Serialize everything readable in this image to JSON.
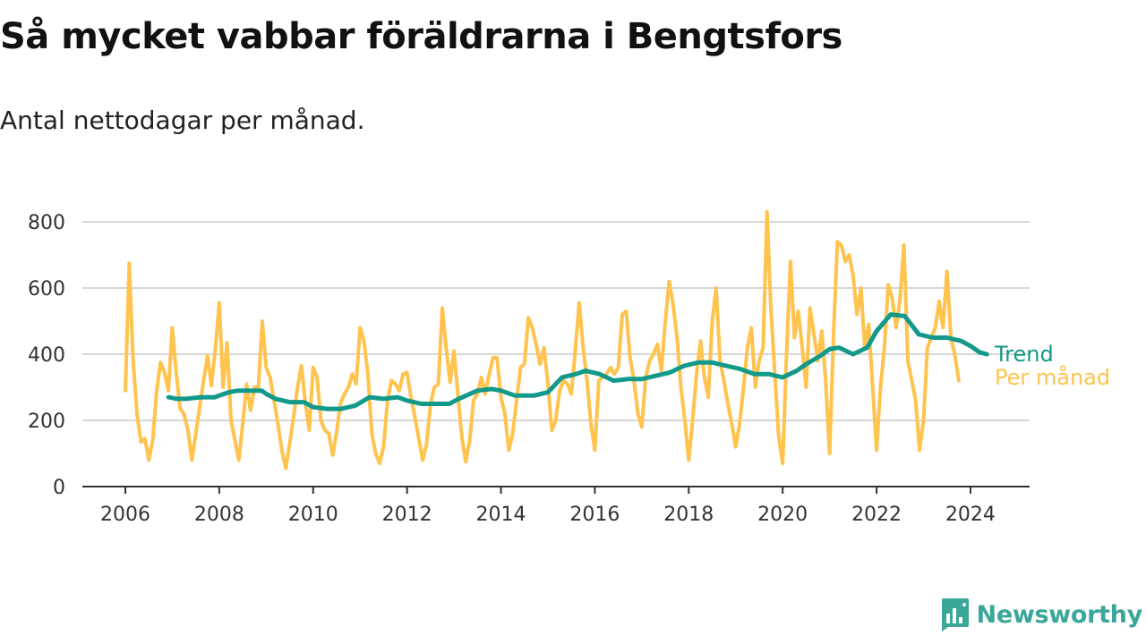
{
  "title": "Så mycket vabbar föräldrarna i Bengtsfors",
  "subtitle": "Antal nettodagar per månad.",
  "brand": "Newsworthy",
  "colors": {
    "monthly": "#ffc34e",
    "trend": "#12998a",
    "grid": "#d6d6d6",
    "axis": "#333333",
    "brand": "#3aa79a"
  },
  "chart_data": {
    "type": "line",
    "x_unit": "year (decimal)",
    "xlim": [
      2006,
      2024.5
    ],
    "ylim": [
      0,
      800
    ],
    "y_ticks": [
      0,
      200,
      400,
      600,
      800
    ],
    "x_ticks": [
      2006,
      2008,
      2010,
      2012,
      2014,
      2016,
      2018,
      2020,
      2022,
      2024
    ],
    "x_tick_labels": [
      "2006",
      "2008",
      "2010",
      "2012",
      "2014",
      "2016",
      "2018",
      "2020",
      "2022",
      "2024"
    ],
    "grid": "horizontal",
    "legend": "inline-right",
    "series": [
      {
        "name": "Per månad",
        "color": "#ffc34e",
        "x_start": 2006.0,
        "x_step": 0.08333,
        "values": [
          290,
          675,
          380,
          215,
          135,
          145,
          80,
          140,
          290,
          375,
          345,
          290,
          480,
          345,
          235,
          220,
          170,
          80,
          160,
          240,
          320,
          395,
          305,
          415,
          555,
          300,
          435,
          200,
          140,
          80,
          190,
          310,
          230,
          300,
          300,
          500,
          360,
          330,
          260,
          190,
          110,
          55,
          130,
          210,
          300,
          365,
          255,
          170,
          360,
          330,
          200,
          170,
          160,
          95,
          165,
          250,
          280,
          300,
          340,
          310,
          480,
          440,
          340,
          160,
          100,
          70,
          120,
          260,
          320,
          310,
          290,
          340,
          345,
          270,
          210,
          145,
          80,
          130,
          250,
          300,
          310,
          540,
          420,
          315,
          410,
          280,
          150,
          75,
          140,
          260,
          280,
          330,
          280,
          340,
          390,
          390,
          270,
          220,
          110,
          160,
          260,
          360,
          370,
          510,
          480,
          430,
          370,
          420,
          310,
          170,
          200,
          290,
          320,
          310,
          280,
          410,
          555,
          420,
          320,
          190,
          110,
          320,
          330,
          340,
          360,
          340,
          360,
          520,
          530,
          390,
          320,
          220,
          180,
          330,
          380,
          400,
          430,
          350,
          500,
          620,
          550,
          450,
          300,
          200,
          80,
          200,
          340,
          440,
          330,
          270,
          500,
          600,
          380,
          320,
          250,
          190,
          120,
          190,
          300,
          420,
          480,
          300,
          380,
          420,
          830,
          540,
          340,
          150,
          70,
          400,
          680,
          450,
          530,
          420,
          300,
          540,
          460,
          380,
          470,
          320,
          100,
          460,
          740,
          730,
          680,
          700,
          640,
          520,
          600,
          420,
          490,
          300,
          110,
          300,
          420,
          610,
          570,
          480,
          570,
          730,
          380,
          320,
          260,
          110,
          200,
          420,
          450,
          480,
          560,
          480,
          650,
          450,
          400,
          320
        ]
      },
      {
        "name": "Trend",
        "color": "#12998a",
        "x": [
          2006.92,
          2007.1,
          2007.3,
          2007.6,
          2007.9,
          2008.2,
          2008.4,
          2008.7,
          2008.9,
          2009.0,
          2009.2,
          2009.5,
          2009.8,
          2010.0,
          2010.3,
          2010.6,
          2010.9,
          2011.2,
          2011.5,
          2011.8,
          2012.0,
          2012.3,
          2012.6,
          2012.9,
          2013.1,
          2013.5,
          2013.8,
          2014.0,
          2014.3,
          2014.7,
          2015.0,
          2015.3,
          2015.6,
          2015.8,
          2016.1,
          2016.4,
          2016.7,
          2017.0,
          2017.3,
          2017.6,
          2017.9,
          2018.2,
          2018.5,
          2018.8,
          2019.1,
          2019.4,
          2019.7,
          2020.0,
          2020.3,
          2020.5,
          2020.8,
          2021.0,
          2021.2,
          2021.5,
          2021.8,
          2022.0,
          2022.3,
          2022.6,
          2022.9,
          2023.2,
          2023.5,
          2023.8,
          2024.0,
          2024.2,
          2024.35
        ],
        "values": [
          270,
          265,
          265,
          270,
          270,
          285,
          290,
          290,
          290,
          280,
          265,
          255,
          255,
          240,
          235,
          235,
          245,
          270,
          265,
          270,
          260,
          250,
          250,
          250,
          265,
          290,
          295,
          290,
          275,
          275,
          285,
          330,
          340,
          350,
          340,
          320,
          325,
          325,
          335,
          345,
          365,
          375,
          375,
          365,
          355,
          340,
          340,
          330,
          350,
          370,
          395,
          415,
          420,
          400,
          420,
          470,
          520,
          515,
          460,
          450,
          450,
          440,
          425,
          405,
          400
        ]
      }
    ]
  }
}
